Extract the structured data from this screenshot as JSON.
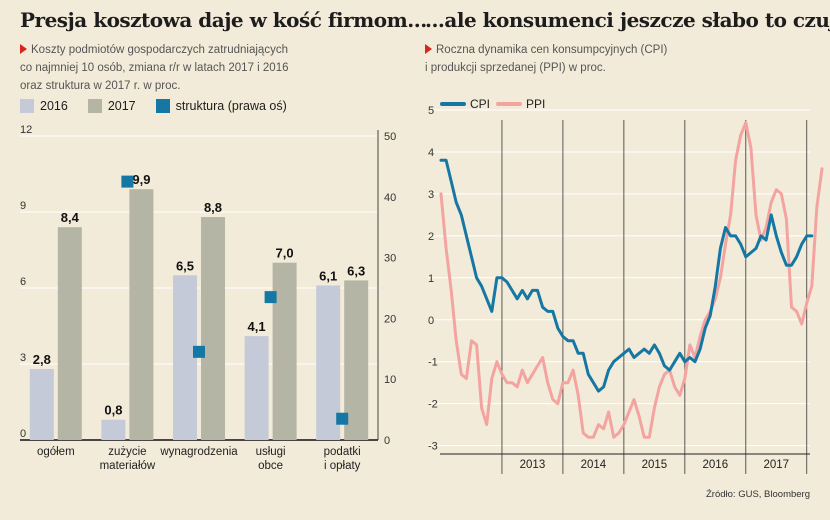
{
  "left": {
    "title": "Presja kosztowa daje w kość firmom...",
    "subtitle_lines": [
      "Koszty podmiotów gospodarczych zatrudniających",
      "co najmniej 10 osób, zmiana r/r w latach 2017 i 2016",
      "oraz struktura w 2017 r. w proc."
    ]
  },
  "right": {
    "title": "...ale konsumenci jeszcze słabo to czują",
    "subtitle_lines": [
      "Roczna dynamika cen konsumpcyjnych (CPI)",
      "i produkcji sprzedanej (PPI) w proc."
    ]
  },
  "source": "Źródło: GUS, Bloomberg",
  "colors": {
    "bar2016": "#c5cad9",
    "bar2017": "#b5b5a6",
    "marker": "#1577a3",
    "cpi": "#1577a3",
    "ppi": "#f3a4a0",
    "accent": "#d9261c",
    "grid": "#1d1d1d"
  },
  "chart_data": [
    {
      "type": "bar",
      "categories": [
        [
          "ogółem"
        ],
        [
          "zużycie",
          "materiałów"
        ],
        [
          "wynagrodzenia"
        ],
        [
          "usługi",
          "obce"
        ],
        [
          "podatki",
          "i opłaty"
        ]
      ],
      "series": [
        {
          "name": "2016",
          "values": [
            2.8,
            0.8,
            6.5,
            4.1,
            6.1
          ],
          "labels": [
            "2,8",
            "0,8",
            "6,5",
            "4,1",
            "6,1"
          ]
        },
        {
          "name": "2017",
          "values": [
            8.4,
            9.9,
            8.8,
            7.0,
            6.3
          ],
          "labels": [
            "8,4",
            "9,9",
            "8,8",
            "7,0",
            "6,3"
          ]
        },
        {
          "name": "struktura (prawa oś)",
          "axis": "right",
          "values": [
            null,
            42.5,
            14.5,
            23.5,
            3.5
          ]
        }
      ],
      "y_left": {
        "ticks": [
          "12",
          "9",
          "6",
          "3",
          "0"
        ],
        "tick_values": [
          12,
          9,
          6,
          3,
          0
        ],
        "lim": [
          0,
          12
        ]
      },
      "y_right": {
        "ticks": [
          "50",
          "40",
          "30",
          "20",
          "10",
          "0"
        ],
        "tick_values": [
          50,
          40,
          30,
          20,
          10,
          0
        ],
        "lim": [
          0,
          50
        ]
      }
    },
    {
      "type": "line",
      "x_start": "2012-01",
      "x_ticks": [
        "2013",
        "2014",
        "2015",
        "2016",
        "2017"
      ],
      "y_ticks": [
        "5",
        "4",
        "3",
        "2",
        "1",
        "0",
        "-1",
        "-2",
        "-3"
      ],
      "y_tick_values": [
        5,
        4,
        3,
        2,
        1,
        0,
        -1,
        -2,
        -3
      ],
      "ylim": [
        -3.2,
        5
      ],
      "series": [
        {
          "name": "CPI",
          "values": [
            3.8,
            3.8,
            3.3,
            2.8,
            2.5,
            2.0,
            1.5,
            1.0,
            0.8,
            0.5,
            0.2,
            1.0,
            1.0,
            0.9,
            0.7,
            0.5,
            0.7,
            0.5,
            0.7,
            0.7,
            0.3,
            0.2,
            0.2,
            -0.2,
            -0.4,
            -0.5,
            -0.5,
            -0.8,
            -0.8,
            -1.3,
            -1.5,
            -1.7,
            -1.6,
            -1.2,
            -1.0,
            -0.9,
            -0.8,
            -0.7,
            -0.9,
            -0.8,
            -0.7,
            -0.8,
            -0.6,
            -0.8,
            -1.1,
            -1.2,
            -1.0,
            -0.8,
            -1.0,
            -0.9,
            -1.0,
            -0.7,
            -0.2,
            0.1,
            0.8,
            1.7,
            2.2,
            2.0,
            2.0,
            1.8,
            1.5,
            1.6,
            1.7,
            2.0,
            1.9,
            2.5,
            2.0,
            1.6,
            1.3,
            1.3,
            1.5,
            1.8,
            2.0,
            2.0
          ]
        },
        {
          "name": "PPI",
          "values": [
            3.0,
            1.7,
            0.7,
            -0.5,
            -1.3,
            -1.4,
            -0.5,
            -0.6,
            -2.1,
            -2.5,
            -1.4,
            -1.0,
            -1.3,
            -1.5,
            -1.5,
            -1.6,
            -1.2,
            -1.5,
            -1.3,
            -1.1,
            -0.9,
            -1.5,
            -1.9,
            -2.0,
            -1.5,
            -1.5,
            -1.2,
            -1.8,
            -2.7,
            -2.8,
            -2.8,
            -2.5,
            -2.6,
            -2.2,
            -2.8,
            -2.7,
            -2.5,
            -2.2,
            -1.9,
            -2.3,
            -2.8,
            -2.8,
            -2.1,
            -1.6,
            -1.3,
            -1.2,
            -1.6,
            -1.8,
            -1.4,
            -0.6,
            -0.9,
            -0.4,
            0.0,
            0.2,
            0.5,
            1.0,
            1.8,
            2.5,
            3.8,
            4.4,
            4.7,
            4.1,
            2.5,
            1.9,
            2.2,
            2.8,
            3.1,
            3.0,
            2.4,
            0.3,
            0.2,
            -0.1,
            0.4,
            0.8,
            2.7,
            3.6
          ]
        }
      ]
    }
  ]
}
